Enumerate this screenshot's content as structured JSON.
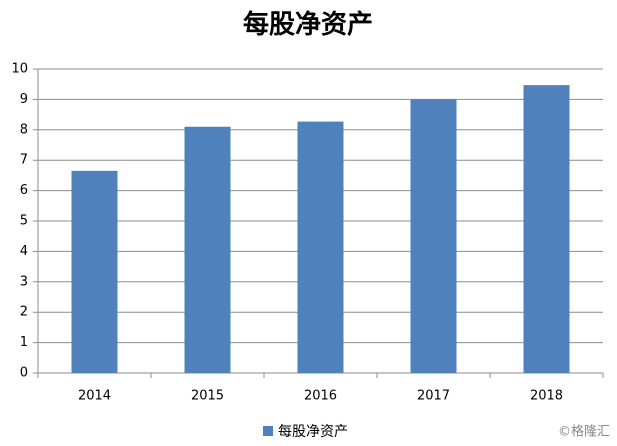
{
  "chart_data": {
    "type": "bar",
    "title": "每股净资产",
    "categories": [
      "2014",
      "2015",
      "2016",
      "2017",
      "2018"
    ],
    "series": [
      {
        "name": "每股净资产",
        "color": "#4f81bd",
        "values": [
          6.65,
          8.1,
          8.27,
          9.0,
          9.47
        ]
      }
    ],
    "ylim": [
      0,
      10
    ],
    "yticks": [
      0,
      1,
      2,
      3,
      4,
      5,
      6,
      7,
      8,
      9,
      10
    ],
    "grid": true,
    "legend": "bottom",
    "watermark": "©格隆汇"
  }
}
